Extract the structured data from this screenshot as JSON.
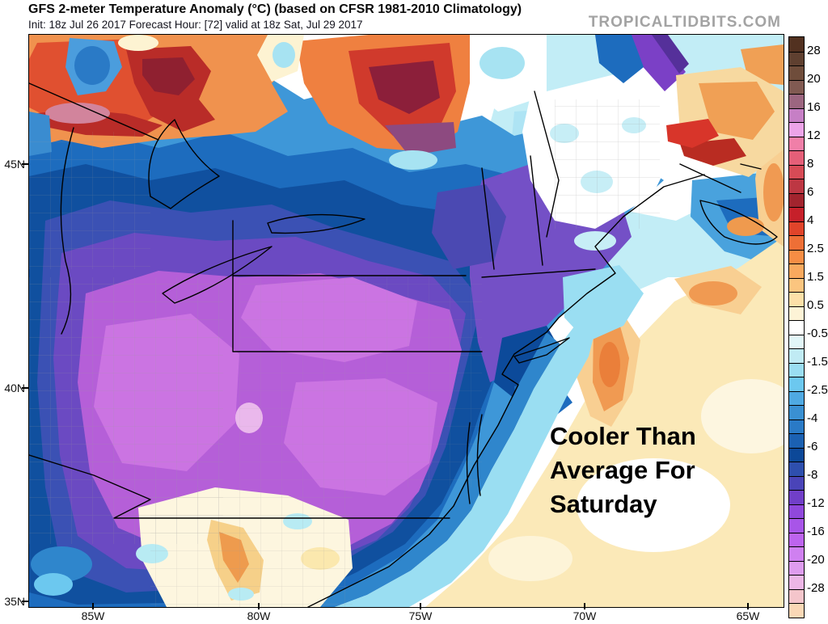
{
  "header": {
    "title": "GFS 2-meter Temperature Anomaly (°C) (based on CFSR 1981-2010 Climatology)",
    "init_line": "Init: 18z Jul 26 2017   Forecast Hour: [72]   valid at 18z Sat, Jul 29 2017",
    "watermark": "TROPICALTIDBITS.COM"
  },
  "map": {
    "annotation_lines": [
      "Cooler Than",
      "Average For",
      "Saturday"
    ],
    "annotation_color": "#000000",
    "lat_labels": [
      "45N",
      "40N",
      "35N"
    ],
    "lon_labels": [
      "85W",
      "80W",
      "75W",
      "70W",
      "65W"
    ]
  },
  "colorbar": {
    "labels": [
      "28",
      "20",
      "16",
      "12",
      "8",
      "6",
      "4",
      "2.5",
      "1.5",
      "0.5",
      "-0.5",
      "-1.5",
      "-2.5",
      "-4",
      "-6",
      "-8",
      "-12",
      "-16",
      "-20",
      "-28"
    ],
    "cells": [
      "#523120",
      "#5f4030",
      "#6f4d3b",
      "#815a52",
      "#9c6680",
      "#c67fc5",
      "#eda4e8",
      "#f07fa8",
      "#e55f78",
      "#d74b56",
      "#bd3743",
      "#a2242e",
      "#c6202a",
      "#e1442a",
      "#ee6f36",
      "#f68d44",
      "#f9a95e",
      "#fbc57f",
      "#fce0a8",
      "#fdf3d6",
      "#ffffff",
      "#e2f6f8",
      "#c0ebf4",
      "#9adef2",
      "#6cc8ef",
      "#4fa9e2",
      "#3a90d2",
      "#2a7ac6",
      "#1b61b2",
      "#0c4898",
      "#2e4fae",
      "#4a44b8",
      "#713fc8",
      "#9048dc",
      "#a855e8",
      "#bd64ee",
      "#cf80f0",
      "#de9cee",
      "#ecb6e6",
      "#f4c5cb",
      "#fad8b6"
    ]
  }
}
